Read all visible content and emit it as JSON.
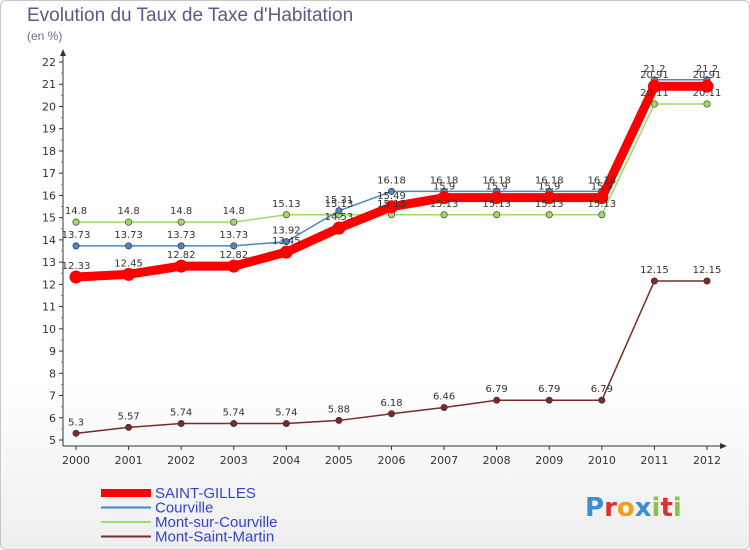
{
  "chart_data": {
    "type": "line",
    "title": "Evolution du Taux de Taxe d'Habitation",
    "subtitle": "(en %)",
    "x": [
      "2000",
      "2001",
      "2002",
      "2003",
      "2004",
      "2005",
      "2006",
      "2007",
      "2008",
      "2009",
      "2010",
      "2011",
      "2012"
    ],
    "ylim": [
      5,
      22
    ],
    "yticks": [
      5,
      6,
      7,
      8,
      9,
      10,
      11,
      12,
      13,
      14,
      15,
      16,
      17,
      18,
      19,
      20,
      21,
      22
    ],
    "grid": false,
    "legend_position": "bottom-left",
    "series": [
      {
        "name": "SAINT-GILLES",
        "color": "#ff0000",
        "values": [
          12.33,
          12.45,
          12.82,
          12.82,
          13.45,
          14.53,
          15.49,
          15.9,
          15.9,
          15.9,
          15.9,
          20.91,
          20.91
        ],
        "labels": [
          "12.33",
          "12.45",
          "12.82",
          "12.82",
          "13.45",
          "14.53",
          "15.49",
          "15.9",
          "15.9",
          "15.9",
          "15.9",
          "20.91",
          "20.91"
        ]
      },
      {
        "name": "Courville",
        "color": "#4a86c0",
        "values": [
          13.73,
          13.73,
          13.73,
          13.73,
          13.92,
          15.31,
          16.18,
          16.18,
          16.18,
          16.18,
          16.18,
          21.2,
          21.2
        ],
        "labels": [
          "13.73",
          "13.73",
          "13.73",
          "13.73",
          "13.92",
          "15.31",
          "16.18",
          "16.18",
          "16.18",
          "16.18",
          "16.18",
          "21.2",
          "21.2"
        ]
      },
      {
        "name": "Mont-sur-Courville",
        "color": "#99dd66",
        "values": [
          14.8,
          14.8,
          14.8,
          14.8,
          15.13,
          15.13,
          15.13,
          15.13,
          15.13,
          15.13,
          15.13,
          20.11,
          20.11
        ],
        "labels": [
          "14.8",
          "14.8",
          "14.8",
          "14.8",
          "15.13",
          "15.13",
          "15.13",
          "15.13",
          "15.13",
          "15.13",
          "15.13",
          "20.11",
          "20.11"
        ]
      },
      {
        "name": "Mont-Saint-Martin",
        "color": "#7a2a2a",
        "values": [
          5.3,
          5.57,
          5.74,
          5.74,
          5.74,
          5.88,
          6.18,
          6.46,
          6.79,
          6.79,
          6.79,
          12.15,
          12.15
        ],
        "labels": [
          "5.3",
          "5.57",
          "5.74",
          "5.74",
          "5.74",
          "5.88",
          "6.18",
          "6.46",
          "6.79",
          "6.79",
          "6.79",
          "12.15",
          "12.15"
        ]
      }
    ]
  },
  "legend": {
    "items": [
      {
        "label": "SAINT-GILLES",
        "color": "#ff0000",
        "text_color": "#3344cc"
      },
      {
        "label": "Courville",
        "color": "#4a86c0",
        "text_color": "#3344cc"
      },
      {
        "label": "Mont-sur-Courville",
        "color": "#99dd66",
        "text_color": "#3344cc"
      },
      {
        "label": "Mont-Saint-Martin",
        "color": "#7a2a2a",
        "text_color": "#3344cc"
      }
    ]
  },
  "brand": {
    "text": "Proxiti",
    "letters": [
      "P",
      "r",
      "o",
      "x",
      "i",
      "t",
      "i"
    ],
    "colors": [
      "#3a8fd0",
      "#e03030",
      "#f0a020",
      "#3a8fd0",
      "#8bc34a",
      "#e03030",
      "#8bc34a"
    ]
  }
}
